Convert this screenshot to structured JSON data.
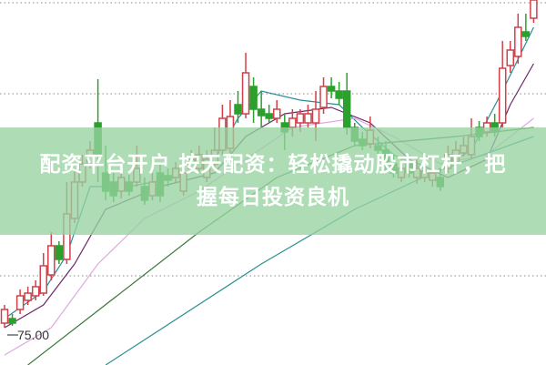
{
  "title": "配资平台开户 按天配资：轻松撬动股市杠杆，把握每日投资良机",
  "colors": {
    "up": "#d0404a",
    "down": "#2ca02c",
    "grid": "#888888",
    "banner": "#96d2a0",
    "ma_fast": "#2a8c96",
    "ma_mid": "#6a2a6a",
    "ma_slow": "#e0a8e0",
    "ma_long": "#3a7a3a",
    "ma_longest": "#2a9090"
  },
  "chart_data": {
    "type": "candlestick",
    "title": "",
    "ylim": [
      73.35,
      93.4
    ],
    "grid": true,
    "gridlines": [
      93.25,
      88.25,
      78.25
    ],
    "annotation": {
      "label": "75.00",
      "value": 75.0,
      "candle": 0
    },
    "candles": [
      [
        75.65,
        76.65,
        75.4,
        76.4
      ],
      [
        75.9,
        76.15,
        75.5,
        75.65
      ],
      [
        76.4,
        77.5,
        76.15,
        77.15
      ],
      [
        76.9,
        77.65,
        76.65,
        77.3
      ],
      [
        77.15,
        78,
        76.9,
        77.65
      ],
      [
        77.3,
        79.5,
        77.15,
        78.8
      ],
      [
        78.3,
        80.65,
        78,
        79.9
      ],
      [
        79.9,
        80.15,
        78.9,
        79.15
      ],
      [
        79.15,
        83.4,
        78.9,
        81.65
      ],
      [
        81.4,
        84.15,
        81.15,
        83.4
      ],
      [
        83.4,
        84.9,
        83.15,
        84.4
      ],
      [
        84.4,
        85.65,
        84.15,
        85.15
      ],
      [
        86.65,
        89.05,
        83.4,
        84.9
      ],
      [
        83.9,
        85.4,
        82.4,
        82.9
      ],
      [
        83.4,
        83.9,
        82.3,
        82.65
      ],
      [
        82.9,
        84.15,
        82.5,
        83.65
      ],
      [
        83.4,
        83.8,
        82.65,
        82.9
      ],
      [
        83.4,
        85.4,
        83.15,
        84.15
      ],
      [
        83.15,
        83.65,
        82.15,
        82.4
      ],
      [
        82.65,
        83.9,
        82.4,
        83.4
      ],
      [
        83.9,
        84.4,
        82.3,
        82.65
      ],
      [
        83.75,
        84.15,
        83.15,
        83.5
      ],
      [
        83.65,
        84.5,
        83.4,
        84.15
      ],
      [
        82.9,
        84.4,
        82.65,
        83.9
      ],
      [
        84.15,
        85.15,
        83.9,
        84.65
      ],
      [
        84.15,
        85.4,
        83.9,
        84.9
      ],
      [
        83.65,
        85.15,
        83.4,
        84.65
      ],
      [
        84.4,
        86.4,
        84.15,
        85.15
      ],
      [
        85.15,
        87.65,
        84.9,
        86.9
      ],
      [
        85.25,
        87.9,
        85,
        87
      ],
      [
        87.65,
        88.4,
        86.65,
        87.15
      ],
      [
        87.15,
        90.5,
        86.9,
        89.4
      ],
      [
        88.65,
        89.15,
        86.65,
        87.4
      ],
      [
        87.4,
        88.4,
        86.4,
        87.05
      ],
      [
        87.15,
        87.65,
        86.65,
        86.9
      ],
      [
        86.9,
        87.9,
        86.65,
        87.4
      ],
      [
        86.65,
        87.15,
        85.15,
        86.15
      ],
      [
        86.4,
        87.4,
        85.9,
        86.9
      ],
      [
        86.65,
        87.4,
        86.15,
        87.15
      ],
      [
        86.65,
        87.65,
        86.4,
        87.15
      ],
      [
        86.65,
        88.4,
        85.65,
        87.4
      ],
      [
        87.5,
        89.15,
        87.15,
        88.65
      ],
      [
        88.65,
        89.15,
        88,
        88.4
      ],
      [
        88.4,
        88.9,
        87.65,
        88
      ],
      [
        88.4,
        89.4,
        86,
        86.4
      ],
      [
        86.4,
        86.65,
        85.4,
        85.65
      ],
      [
        85.75,
        86.15,
        85.15,
        85.4
      ],
      [
        85.5,
        87,
        85.25,
        86.25
      ],
      [
        85.4,
        85.9,
        84.65,
        85.15
      ],
      [
        85.15,
        85.65,
        83.9,
        84.4
      ],
      [
        84.4,
        84.9,
        83.65,
        83.9
      ],
      [
        83.65,
        84.65,
        83.4,
        84.15
      ],
      [
        84.4,
        84.9,
        83.65,
        83.9
      ],
      [
        83.65,
        84.65,
        83.3,
        84.15
      ],
      [
        83.65,
        84.4,
        83.4,
        84
      ],
      [
        83.5,
        84.4,
        83.15,
        83.9
      ],
      [
        83.65,
        84.15,
        82.9,
        83.15
      ],
      [
        84.15,
        85.4,
        83.9,
        84.9
      ],
      [
        84.5,
        85.65,
        84.3,
        85.15
      ],
      [
        85,
        85.9,
        84.8,
        85.4
      ],
      [
        84.9,
        86.9,
        84.65,
        85.9
      ],
      [
        86.4,
        86.75,
        85.65,
        85.9
      ],
      [
        86.15,
        87,
        85.9,
        86.65
      ],
      [
        86.65,
        87.15,
        85.9,
        86.15
      ],
      [
        86.65,
        91.15,
        86.4,
        89.65
      ],
      [
        89.8,
        91.15,
        89.4,
        90.65
      ],
      [
        90.3,
        92.65,
        89.9,
        91.9
      ],
      [
        91.65,
        92.65,
        91.15,
        91.4
      ],
      [
        92.4,
        93.4,
        92.15,
        93.4
      ]
    ],
    "candle_fields": [
      "open",
      "high",
      "low",
      "close"
    ],
    "moving_averages": [
      {
        "color": "ma_fast",
        "points": [
          [
            0,
            75.9
          ],
          [
            5,
            77.4
          ],
          [
            8,
            79.4
          ],
          [
            11,
            83.15
          ],
          [
            16,
            83.15
          ],
          [
            22,
            83.65
          ],
          [
            27,
            84.65
          ],
          [
            30,
            86.9
          ],
          [
            33,
            88.4
          ],
          [
            38,
            87.9
          ],
          [
            43,
            87.65
          ],
          [
            46,
            86.4
          ],
          [
            50,
            84.9
          ],
          [
            55,
            83.9
          ],
          [
            60,
            85.15
          ],
          [
            64,
            88.4
          ],
          [
            68,
            91.9
          ]
        ]
      },
      {
        "color": "ma_mid",
        "points": [
          [
            0,
            75.4
          ],
          [
            5,
            76.65
          ],
          [
            9,
            78.9
          ],
          [
            13,
            81.9
          ],
          [
            20,
            83.15
          ],
          [
            27,
            83.9
          ],
          [
            31,
            85.9
          ],
          [
            36,
            87.15
          ],
          [
            42,
            87.5
          ],
          [
            47,
            86.65
          ],
          [
            52,
            84.65
          ],
          [
            57,
            83.65
          ],
          [
            62,
            84.65
          ],
          [
            65,
            87.65
          ],
          [
            68,
            89.9
          ]
        ]
      },
      {
        "color": "ma_slow",
        "points": [
          [
            0,
            73.9
          ],
          [
            6,
            75.4
          ],
          [
            12,
            78.9
          ],
          [
            18,
            81.4
          ],
          [
            25,
            82.9
          ],
          [
            31,
            84.65
          ],
          [
            37,
            86.4
          ],
          [
            45,
            86.9
          ],
          [
            50,
            85.9
          ],
          [
            56,
            84.4
          ],
          [
            62,
            84.9
          ],
          [
            68,
            86.9
          ]
        ]
      },
      {
        "color": "ma_long",
        "points": [
          [
            3,
            73.35
          ],
          [
            25,
            80.65
          ],
          [
            35,
            83.65
          ],
          [
            45,
            85.4
          ],
          [
            58,
            85.9
          ],
          [
            68,
            86.4
          ]
        ]
      },
      {
        "color": "ma_longest",
        "points": [
          [
            13,
            73.35
          ],
          [
            33,
            78.9
          ],
          [
            45,
            81.9
          ],
          [
            55,
            83.9
          ],
          [
            68,
            85.9
          ]
        ]
      }
    ]
  }
}
